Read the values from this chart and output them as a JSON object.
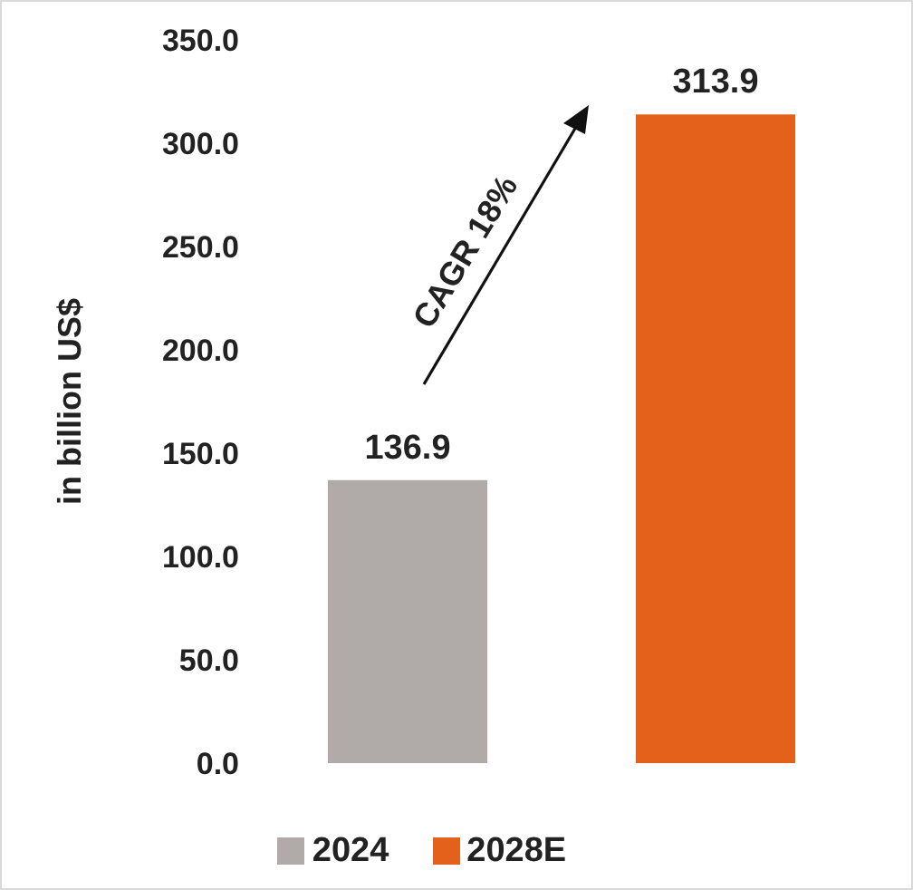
{
  "chart_data": {
    "type": "bar",
    "ylabel": "in billion US$",
    "categories": [
      null,
      null
    ],
    "stacked": true,
    "series": [
      {
        "name": "2024",
        "color": "#b0aaa8",
        "values": [
          136.9,
          null
        ]
      },
      {
        "name": "2028E",
        "color": "#e3611a",
        "values": [
          null,
          313.9
        ]
      }
    ],
    "ylim": [
      0,
      350
    ],
    "yticks": [
      {
        "value": 0,
        "label": "0.0"
      },
      {
        "value": 50,
        "label": "50.0"
      },
      {
        "value": 100,
        "label": "100.0"
      },
      {
        "value": 150,
        "label": "150.0"
      },
      {
        "value": 200,
        "label": "200.0"
      },
      {
        "value": 250,
        "label": "250.0"
      },
      {
        "value": 300,
        "label": "300.0"
      },
      {
        "value": 350,
        "label": "350.0"
      }
    ],
    "data_labels": true,
    "legend": "bottom",
    "grid": false,
    "annotations": [
      "CAGR 18%"
    ]
  }
}
